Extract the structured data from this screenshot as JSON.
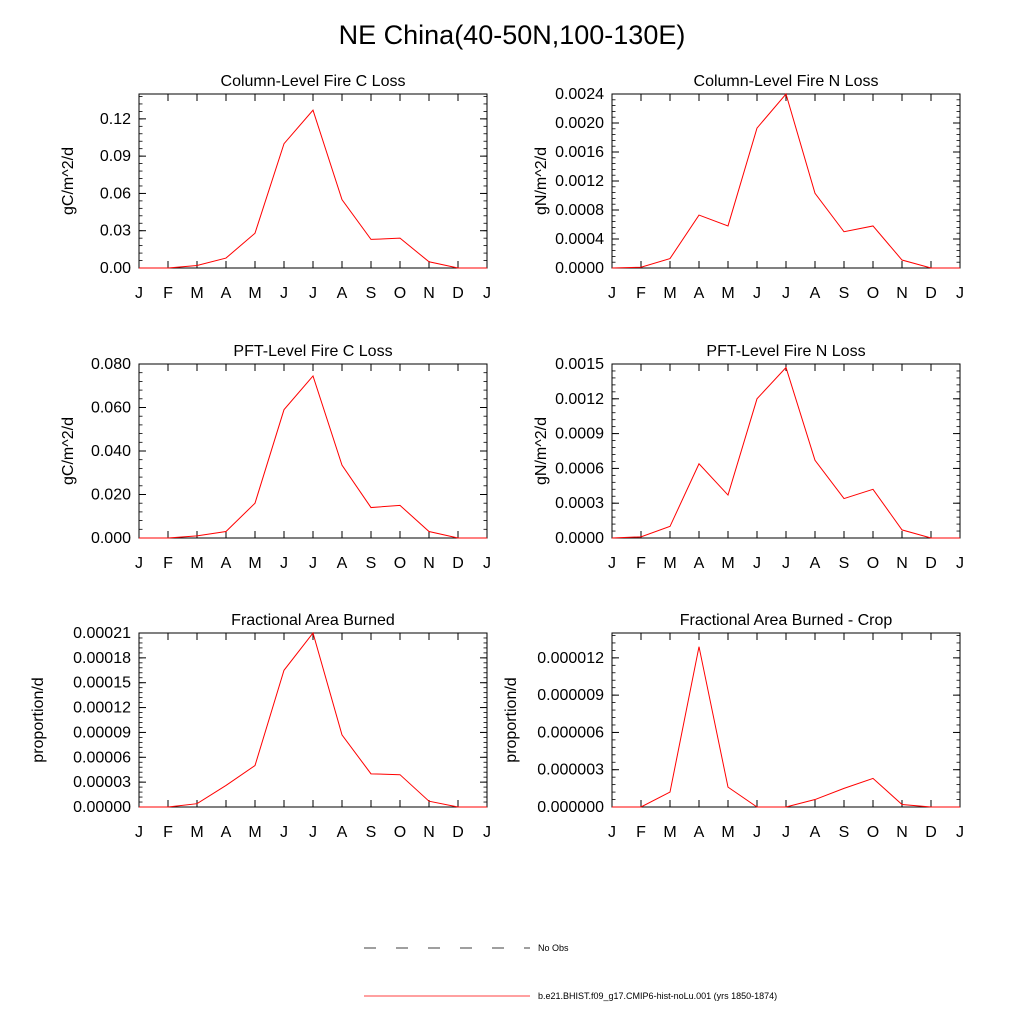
{
  "title": "NE China(40-50N,100-130E)",
  "months": [
    "J",
    "F",
    "M",
    "A",
    "M",
    "J",
    "J",
    "A",
    "S",
    "O",
    "N",
    "D",
    "J"
  ],
  "colors": {
    "model": "#ff0000",
    "obs": "#000000",
    "axis": "#000000"
  },
  "legend": {
    "obs_label": "No Obs",
    "model_label": "b.e21.BHIST.f09_g17.CMIP6-hist-noLu.001 (yrs 1850-1874)"
  },
  "chart_data": [
    {
      "type": "line",
      "title": "Column-Level Fire C Loss",
      "ylabel": "gC/m^2/d",
      "ylim": [
        0,
        0.14
      ],
      "yticks": [
        0,
        0.03,
        0.06,
        0.09,
        0.12
      ],
      "ytick_labels": [
        "0.00",
        "0.03",
        "0.06",
        "0.09",
        "0.12"
      ],
      "series": [
        {
          "values": [
            0,
            0,
            0.002,
            0.008,
            0.028,
            0.1,
            0.127,
            0.055,
            0.023,
            0.024,
            0.005,
            0,
            0
          ]
        }
      ]
    },
    {
      "type": "line",
      "title": "Column-Level Fire N Loss",
      "ylabel": "gN/m^2/d",
      "ylim": [
        0,
        0.0024
      ],
      "yticks": [
        0,
        0.0004,
        0.0008,
        0.0012,
        0.0016,
        0.002,
        0.0024
      ],
      "ytick_labels": [
        "0.0000",
        "0.0004",
        "0.0008",
        "0.0012",
        "0.0016",
        "0.0020",
        "0.0024"
      ],
      "series": [
        {
          "values": [
            0,
            1e-05,
            0.00013,
            0.00073,
            0.00058,
            0.00193,
            0.0024,
            0.00103,
            0.0005,
            0.00058,
            0.00011,
            0,
            0
          ]
        }
      ]
    },
    {
      "type": "line",
      "title": "PFT-Level Fire C Loss",
      "ylabel": "gC/m^2/d",
      "ylim": [
        0,
        0.08
      ],
      "yticks": [
        0,
        0.02,
        0.04,
        0.06,
        0.08
      ],
      "ytick_labels": [
        "0.000",
        "0.020",
        "0.040",
        "0.060",
        "0.080"
      ],
      "series": [
        {
          "values": [
            0,
            0,
            0.001,
            0.003,
            0.016,
            0.059,
            0.0745,
            0.0335,
            0.014,
            0.015,
            0.003,
            0,
            0
          ]
        }
      ]
    },
    {
      "type": "line",
      "title": "PFT-Level Fire N Loss",
      "ylabel": "gN/m^2/d",
      "ylim": [
        0,
        0.0015
      ],
      "yticks": [
        0,
        0.0003,
        0.0006,
        0.0009,
        0.0012,
        0.0015
      ],
      "ytick_labels": [
        "0.0000",
        "0.0003",
        "0.0006",
        "0.0009",
        "0.0012",
        "0.0015"
      ],
      "series": [
        {
          "values": [
            0,
            1e-05,
            0.0001,
            0.00064,
            0.00037,
            0.0012,
            0.00147,
            0.00067,
            0.00034,
            0.00042,
            7e-05,
            0,
            0
          ]
        }
      ]
    },
    {
      "type": "line",
      "title": "Fractional Area Burned",
      "ylabel": "proportion/d",
      "ylim": [
        0,
        0.00021
      ],
      "yticks": [
        0,
        3e-05,
        6e-05,
        9e-05,
        0.00012,
        0.00015,
        0.00018,
        0.00021
      ],
      "ytick_labels": [
        "0.00000",
        "0.00003",
        "0.00006",
        "0.00009",
        "0.00012",
        "0.00015",
        "0.00018",
        "0.00021"
      ],
      "series": [
        {
          "values": [
            0,
            0,
            4e-06,
            2.6e-05,
            5e-05,
            0.000165,
            0.00021,
            8.7e-05,
            4e-05,
            3.9e-05,
            7e-06,
            0,
            0
          ]
        }
      ]
    },
    {
      "type": "line",
      "title": "Fractional Area Burned - Crop",
      "ylabel": "proportion/d",
      "ylim": [
        0,
        1.4e-05
      ],
      "yticks": [
        0,
        3e-06,
        6e-06,
        9e-06,
        1.2e-05
      ],
      "ytick_labels": [
        "0.000000",
        "0.000003",
        "0.000006",
        "0.000009",
        "0.000012"
      ],
      "series": [
        {
          "values": [
            0,
            0,
            1.2e-06,
            1.29e-05,
            1.6e-06,
            0,
            0,
            6e-07,
            1.5e-06,
            2.3e-06,
            2e-07,
            0,
            0
          ]
        }
      ]
    }
  ]
}
